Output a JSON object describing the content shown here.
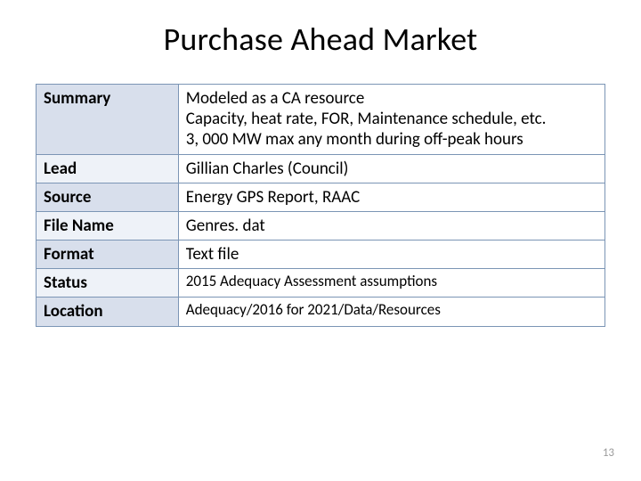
{
  "title": "Purchase Ahead Market",
  "page_number": "13",
  "table": {
    "border_color": "#7b95b5",
    "label_bg_odd": "#d8dfec",
    "label_bg_even": "#eef2f8",
    "value_bg": "#ffffff",
    "label_fontsize": 19,
    "value_fontsize": 19,
    "label_col_width_pct": 25,
    "rows": [
      {
        "label": "Summary",
        "value": "Modeled as a CA resource\nCapacity, heat rate, FOR, Maintenance schedule, etc.\n3, 000 MW max any month during off-peak hours"
      },
      {
        "label": "Lead",
        "value": "Gillian Charles (Council)"
      },
      {
        "label": "Source",
        "value": "Energy GPS Report, RAAC"
      },
      {
        "label": "File Name",
        "value": "Genres. dat"
      },
      {
        "label": "Format",
        "value": "Text file"
      },
      {
        "label": "Status",
        "value": "2015 Adequacy Assessment assumptions",
        "small": true
      },
      {
        "label": "Location",
        "value": "Adequacy/2016 for 2021/Data/Resources",
        "small": true
      }
    ]
  }
}
